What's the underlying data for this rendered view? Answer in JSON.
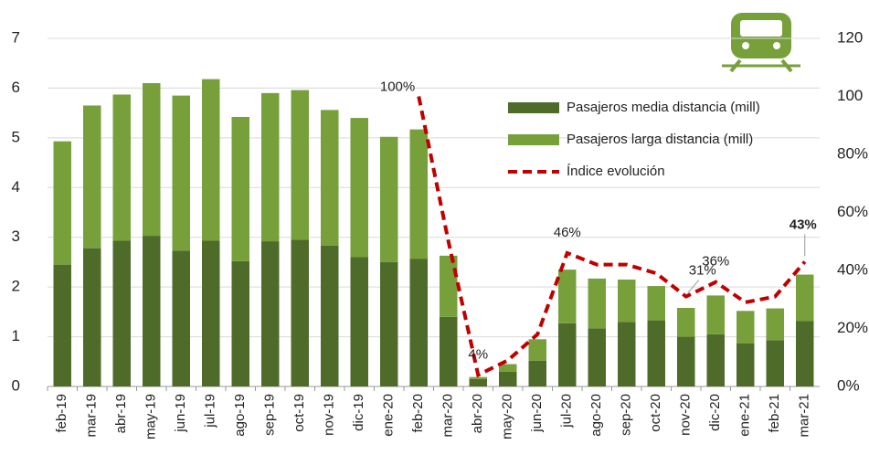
{
  "chart_data": {
    "type": "bar",
    "categories": [
      "feb-19",
      "mar-19",
      "abr-19",
      "may-19",
      "jun-19",
      "jul-19",
      "ago-19",
      "sep-19",
      "oct-19",
      "nov-19",
      "dic-19",
      "ene-20",
      "feb-20",
      "mar-20",
      "abr-20",
      "may-20",
      "jun-20",
      "jul-20",
      "ago-20",
      "sep-20",
      "oct-20",
      "nov-20",
      "dic-20",
      "ene-21",
      "feb-21",
      "mar-21"
    ],
    "stacked": true,
    "series": [
      {
        "name": "Pasajeros media distancia (mill)",
        "color": "#4e6b2a",
        "type": "bar",
        "values": [
          2.45,
          2.78,
          2.93,
          3.03,
          2.73,
          2.93,
          2.52,
          2.92,
          2.95,
          2.83,
          2.6,
          2.5,
          2.57,
          1.4,
          0.15,
          0.3,
          0.52,
          1.27,
          1.17,
          1.3,
          1.33,
          1.0,
          1.05,
          0.87,
          0.93,
          1.32
        ]
      },
      {
        "name": "Pasajeros larga distancia (mill)",
        "color": "#77a03a",
        "type": "bar",
        "values": [
          2.48,
          2.87,
          2.94,
          3.07,
          3.12,
          3.25,
          2.9,
          2.98,
          3.01,
          2.73,
          2.8,
          2.52,
          2.6,
          1.23,
          0.04,
          0.15,
          0.43,
          1.08,
          1.0,
          0.85,
          0.69,
          0.58,
          0.78,
          0.65,
          0.64,
          0.93
        ]
      },
      {
        "name": "Índice evolución",
        "color": "#c00000",
        "type": "line",
        "axis": "y2",
        "dashed": true,
        "values": [
          null,
          null,
          null,
          null,
          null,
          null,
          null,
          null,
          null,
          null,
          null,
          null,
          100,
          50,
          4,
          9,
          18,
          46,
          42,
          42,
          39,
          31,
          36,
          29,
          31,
          43
        ],
        "value_labels": [
          null,
          null,
          null,
          null,
          null,
          null,
          null,
          null,
          null,
          null,
          null,
          null,
          "100%",
          null,
          "4%",
          null,
          null,
          "46%",
          null,
          null,
          null,
          "31%",
          "36%",
          null,
          null,
          "43%"
        ]
      }
    ],
    "ylim": [
      0,
      7
    ],
    "yticks": [
      0,
      1,
      2,
      3,
      4,
      5,
      6,
      7
    ],
    "y2lim": [
      0,
      120
    ],
    "y2ticks": [
      {
        "value": 0,
        "label": "0%"
      },
      {
        "value": 20,
        "label": "20%"
      },
      {
        "value": 40,
        "label": "40%"
      },
      {
        "value": 60,
        "label": "60%"
      },
      {
        "value": 80,
        "label": "80%"
      },
      100,
      120
    ],
    "grid": true,
    "legend": "top-right"
  }
}
